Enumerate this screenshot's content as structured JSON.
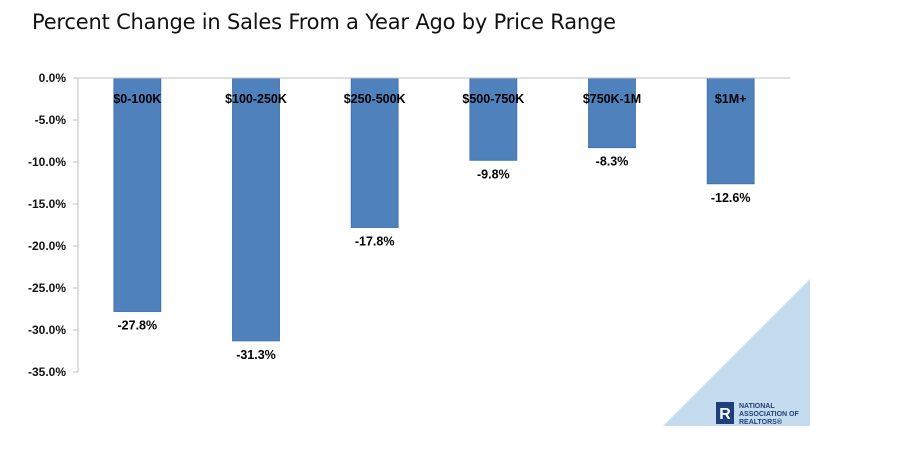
{
  "title": "Percent Change in Sales From a Year Ago by Price Range",
  "chart_data": {
    "type": "bar",
    "title": "Percent Change in Sales From a Year Ago by Price Range",
    "xlabel": "",
    "ylabel": "",
    "categories": [
      "$0-100K",
      "$100-250K",
      "$250-500K",
      "$500-750K",
      "$750K-1M",
      "$1M+"
    ],
    "values": [
      -27.8,
      -31.3,
      -17.8,
      -9.8,
      -8.3,
      -12.6
    ],
    "data_labels": [
      "-27.8%",
      "-31.3%",
      "-17.8%",
      "-9.8%",
      "-8.3%",
      "-12.6%"
    ],
    "ylim": [
      -35,
      0
    ],
    "yticks": [
      0,
      -5,
      -10,
      -15,
      -20,
      -25,
      -30,
      -35
    ],
    "ytick_labels": [
      "0.0%",
      "-5.0%",
      "-10.0%",
      "-15.0%",
      "-20.0%",
      "-25.0%",
      "-30.0%",
      "-35.0%"
    ],
    "category_label_position": "top",
    "grid": false,
    "legend": "none",
    "bar_color": "#4f81bd",
    "bar_edge_color": "#3e6ea6"
  },
  "logo": {
    "line1": "NATIONAL",
    "line2": "ASSOCIATION OF",
    "line3": "REALTORS®",
    "mark": "R",
    "mark_color": "#1f3f7a",
    "corner_color": "#c5dcee"
  }
}
